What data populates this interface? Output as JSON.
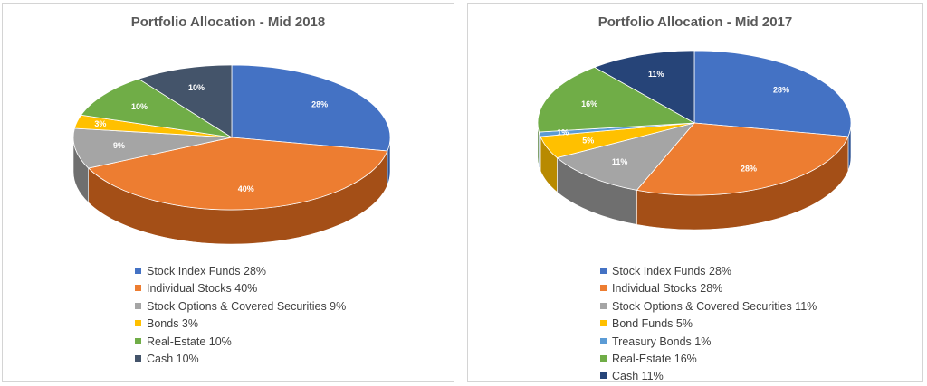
{
  "chart_data": [
    {
      "type": "pie",
      "title": "Portfolio Allocation - Mid 2018",
      "legend_position": "bottom",
      "slices": [
        {
          "label": "Stock Index Funds 28%",
          "value": 28,
          "data_label": "28%",
          "color": "#4472C4",
          "side": "#2E5393"
        },
        {
          "label": "Individual Stocks 40%",
          "value": 40,
          "data_label": "40%",
          "color": "#ED7D31",
          "side": "#A44F17"
        },
        {
          "label": "Stock Options & Covered Securities 9%",
          "value": 9,
          "data_label": "9%",
          "color": "#A5A5A5",
          "side": "#6F6F6F"
        },
        {
          "label": "Bonds 3%",
          "value": 3,
          "data_label": "3%",
          "color": "#FFC000",
          "side": "#B88A00"
        },
        {
          "label": "Real-Estate 10%",
          "value": 10,
          "data_label": "10%",
          "color": "#70AD47",
          "side": "#4C7A2E"
        },
        {
          "label": "Cash 10%",
          "value": 10,
          "data_label": "10%",
          "color": "#44546A",
          "side": "#2B3746"
        }
      ]
    },
    {
      "type": "pie",
      "title": "Portfolio Allocation - Mid 2017",
      "legend_position": "bottom",
      "slices": [
        {
          "label": "Stock Index Funds 28%",
          "value": 28,
          "data_label": "28%",
          "color": "#4472C4",
          "side": "#2E5393"
        },
        {
          "label": "Individual Stocks 28%",
          "value": 28,
          "data_label": "28%",
          "color": "#ED7D31",
          "side": "#A44F17"
        },
        {
          "label": "Stock Options & Covered Securities 11%",
          "value": 11,
          "data_label": "11%",
          "color": "#A5A5A5",
          "side": "#6F6F6F"
        },
        {
          "label": "Bond Funds 5%",
          "value": 5,
          "data_label": "5%",
          "color": "#FFC000",
          "side": "#B88A00"
        },
        {
          "label": "Treasury Bonds 1%",
          "value": 1,
          "data_label": "1%",
          "color": "#5B9BD5",
          "side": "#3C6E9E"
        },
        {
          "label": "Real-Estate 16%",
          "value": 16,
          "data_label": "16%",
          "color": "#70AD47",
          "side": "#4C7A2E"
        },
        {
          "label": "Cash 11%",
          "value": 11,
          "data_label": "11%",
          "color": "#264478",
          "side": "#172A4A"
        }
      ]
    }
  ]
}
